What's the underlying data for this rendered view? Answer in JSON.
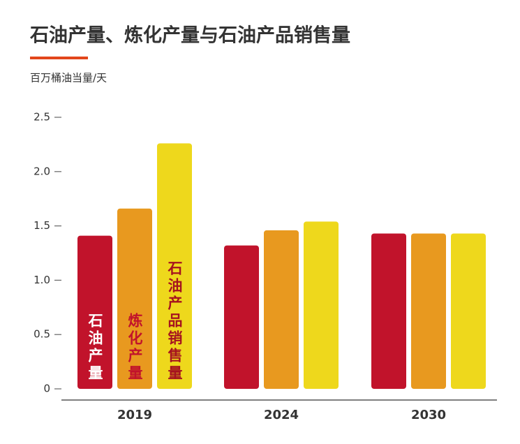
{
  "chart_data": {
    "type": "bar",
    "title": "石油产量、炼化产量与石油产品销售量",
    "y_label": "百万桶油当量/天",
    "categories": [
      "2019",
      "2024",
      "2030"
    ],
    "series": [
      {
        "name": "石油产量",
        "color": "#c1132b",
        "values": [
          1.41,
          1.32,
          1.43
        ]
      },
      {
        "name": "炼化产量",
        "color": "#e8991f",
        "values": [
          1.66,
          1.46,
          1.43
        ]
      },
      {
        "name": "石油产品销售量",
        "color": "#eed81c",
        "values": [
          2.26,
          1.54,
          1.43
        ]
      }
    ],
    "ylim": [
      0,
      2.5
    ],
    "yticks": [
      0,
      0.5,
      {
        "value": 1,
        "label": "1.0"
      },
      1.5,
      {
        "value": 2,
        "label": "2.0"
      },
      2.5
    ]
  }
}
